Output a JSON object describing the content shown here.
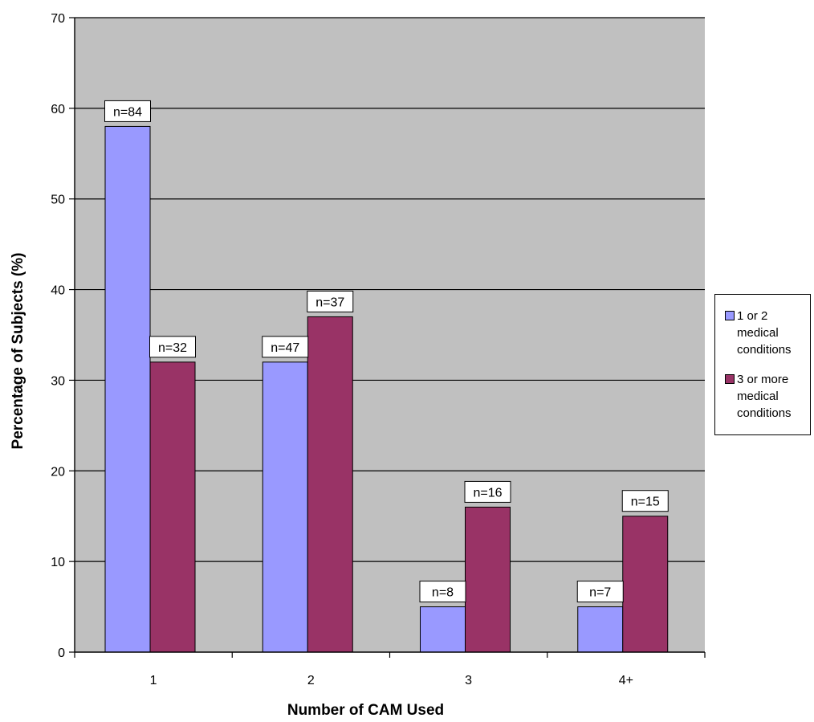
{
  "chart_data": {
    "type": "bar",
    "title": "",
    "xlabel": "Number of CAM Used",
    "ylabel": "Percentage of Subjects (%)",
    "categories": [
      "1",
      "2",
      "3",
      "4+"
    ],
    "ylim": [
      0,
      70
    ],
    "yticks": [
      "0",
      "10",
      "20",
      "30",
      "40",
      "50",
      "60",
      "70"
    ],
    "grid": true,
    "legend_position": "right",
    "series": [
      {
        "name": "1 or 2\nmedical\nconditions",
        "color": "#9999ff",
        "values": [
          58,
          32,
          5,
          5
        ],
        "labels": [
          "n=84",
          "n=47",
          "n=8",
          "n=7"
        ]
      },
      {
        "name": "3 or more\nmedical\nconditions",
        "color": "#993366",
        "values": [
          32,
          37,
          16,
          15
        ],
        "labels": [
          "n=32",
          "n=37",
          "n=16",
          "n=15"
        ]
      }
    ],
    "plot_background": "#c0c0c0"
  }
}
